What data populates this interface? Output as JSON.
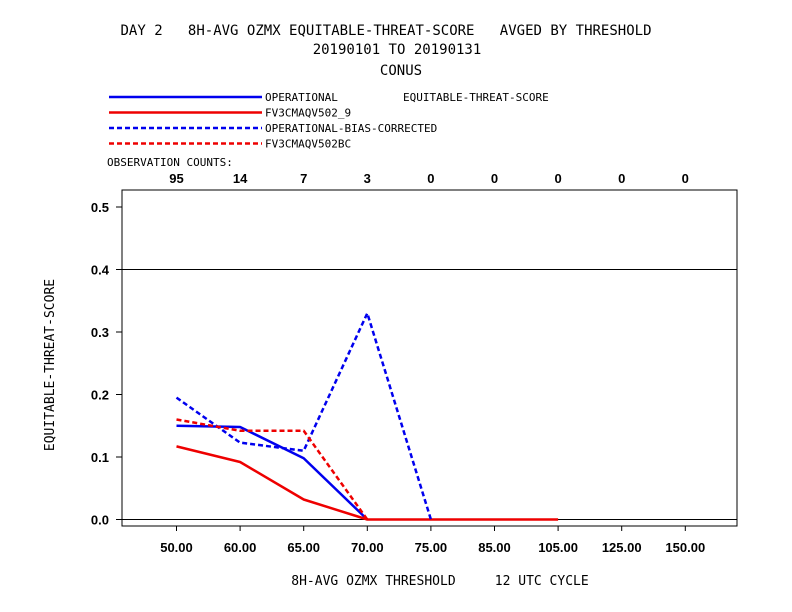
{
  "chart_data": {
    "type": "line",
    "title": "DAY 2   8H-AVG OZMX EQUITABLE-THREAT-SCORE   AVGED BY THRESHOLD",
    "subtitle": "20190101 TO 20190131",
    "region": "CONUS",
    "xlabel": "8H-AVG OZMX THRESHOLD     12 UTC CYCLE",
    "ylabel": "EQUITABLE-THREAT-SCORE",
    "legend_header": "EQUITABLE-THREAT-SCORE",
    "legend_placement": "top-left",
    "categories": [
      "50.00",
      "60.00",
      "65.00",
      "70.00",
      "75.00",
      "85.00",
      "105.00",
      "125.00",
      "150.00"
    ],
    "observation_counts_label": "OBSERVATION COUNTS:",
    "observation_counts": [
      "95",
      "14",
      "7",
      "3",
      "0",
      "0",
      "0",
      "0",
      "0"
    ],
    "ylim": [
      0,
      0.52
    ],
    "yticks": [
      "0.0",
      "0.1",
      "0.2",
      "0.3",
      "0.4",
      "0.5"
    ],
    "reference_line": 0.4,
    "grid": false,
    "series": [
      {
        "name": "OPERATIONAL",
        "color": "#0000ee",
        "dash": "solid",
        "values": [
          0.15,
          0.148,
          0.098,
          0.0,
          null,
          null,
          null,
          null,
          null
        ]
      },
      {
        "name": "FV3CMAQV502_9",
        "color": "#ee0000",
        "dash": "solid",
        "values": [
          0.117,
          0.092,
          0.032,
          0.0,
          0.0,
          0.0,
          0.0,
          null,
          null
        ]
      },
      {
        "name": "OPERATIONAL-BIAS-CORRECTED",
        "color": "#0000ee",
        "dash": "dashed",
        "values": [
          0.195,
          0.123,
          0.11,
          0.33,
          0.0,
          null,
          null,
          null,
          null
        ]
      },
      {
        "name": "FV3CMAQV502BC",
        "color": "#ee0000",
        "dash": "dashed",
        "values": [
          0.16,
          0.142,
          0.142,
          0.0,
          null,
          null,
          null,
          null,
          null
        ]
      }
    ]
  }
}
